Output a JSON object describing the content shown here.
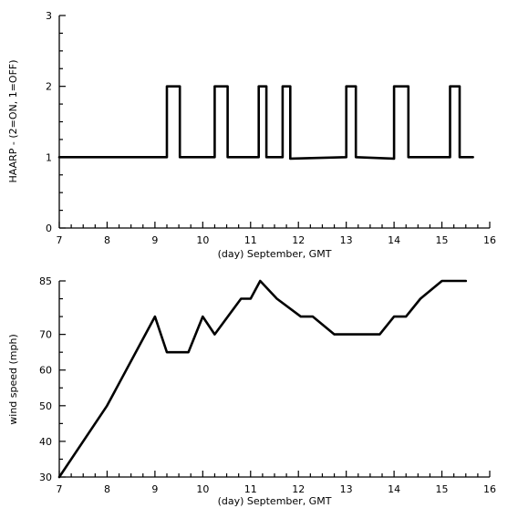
{
  "chart_data": [
    {
      "type": "line",
      "title": "",
      "xlabel": "(day) September, GMT",
      "ylabel": "HAARP - (2=ON, 1=OFF)",
      "xlim": [
        7,
        16
      ],
      "ylim": [
        0,
        3
      ],
      "x_ticks": [
        "7",
        "8",
        "9",
        "10",
        "11",
        "12",
        "13",
        "14",
        "15",
        "16"
      ],
      "y_ticks": [
        "0",
        "1",
        "2",
        "3"
      ],
      "grid": false,
      "series": [
        {
          "x": [
            7.0,
            9.25,
            9.25,
            9.52,
            9.52,
            10.25,
            10.25,
            10.52,
            10.52,
            11.17,
            11.17,
            11.33,
            11.33,
            11.67,
            11.67,
            11.83,
            11.83,
            13.0,
            13.0,
            13.2,
            13.2,
            14.0,
            14.0,
            14.3,
            14.3,
            15.17,
            15.17,
            15.37,
            15.37,
            15.65
          ],
          "y": [
            1,
            1,
            2,
            2,
            1,
            1,
            2,
            2,
            1,
            1,
            2,
            2,
            1,
            1,
            2,
            2,
            0.98,
            1.0,
            2,
            2,
            1,
            0.98,
            2,
            2,
            1,
            1,
            2,
            2,
            1,
            1
          ]
        }
      ]
    },
    {
      "type": "line",
      "title": "",
      "xlabel": "(day) September, GMT",
      "ylabel": "wind speed (mph)",
      "xlim": [
        7,
        16
      ],
      "ylim": [
        30,
        85
      ],
      "x_ticks": [
        "7",
        "8",
        "9",
        "10",
        "11",
        "12",
        "13",
        "14",
        "15",
        "16"
      ],
      "y_ticks": [
        "30",
        "40",
        "50",
        "60",
        "70",
        "85"
      ],
      "grid": false,
      "series": [
        {
          "x": [
            7.0,
            8.0,
            9.0,
            9.25,
            9.7,
            10.0,
            10.25,
            10.8,
            11.0,
            11.2,
            11.55,
            12.05,
            12.3,
            12.75,
            13.0,
            13.7,
            14.0,
            14.25,
            14.55,
            15.0,
            15.5
          ],
          "y": [
            30,
            50,
            75,
            65,
            65,
            75,
            70,
            80,
            80,
            85,
            80,
            75,
            75,
            70,
            70,
            70,
            75,
            75,
            80,
            85,
            85
          ]
        }
      ]
    }
  ]
}
